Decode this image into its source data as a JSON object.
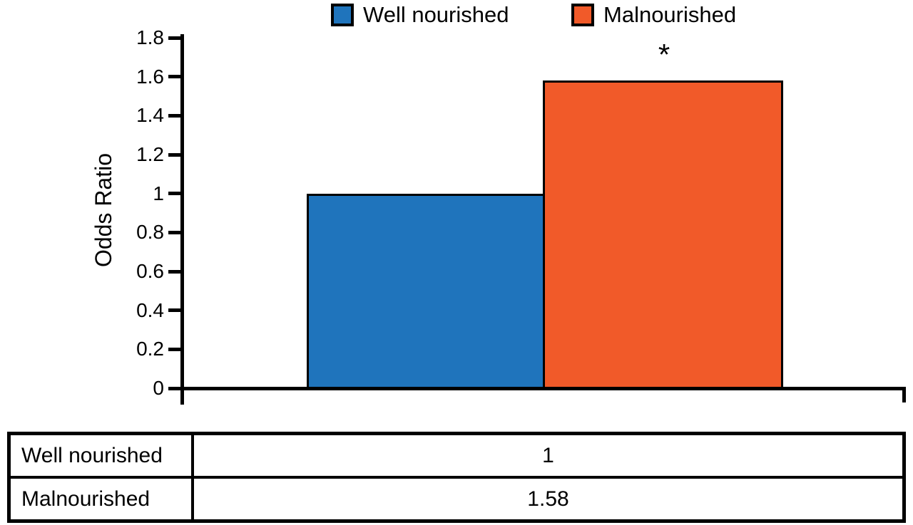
{
  "legend": {
    "items": [
      {
        "label": "Well nourished",
        "color": "#1F74BC"
      },
      {
        "label": "Malnourished",
        "color": "#F15A29"
      }
    ]
  },
  "chart_data": {
    "type": "bar",
    "title": "",
    "categories": [
      "Well nourished",
      "Malnourished"
    ],
    "values": [
      1,
      1.58
    ],
    "series_colors": [
      "#1F74BC",
      "#F15A29"
    ],
    "xlabel": "",
    "ylabel": "Odds Ratio",
    "ylim": [
      0,
      1.8
    ],
    "yticks": [
      0,
      0.2,
      0.4,
      0.6,
      0.8,
      1,
      1.2,
      1.4,
      1.6,
      1.8
    ],
    "ytick_labels": [
      "0",
      "0.2",
      "0.4",
      "0.6",
      "0.8",
      "1",
      "1.2",
      "1.4",
      "1.6",
      "1.8"
    ],
    "grid": false,
    "legend_position": "top",
    "annotation": "*",
    "annotation_on": "Malnourished"
  },
  "table": {
    "rows": [
      {
        "label": "Well nourished",
        "value": "1"
      },
      {
        "label": "Malnourished",
        "value": "1.58"
      }
    ]
  }
}
